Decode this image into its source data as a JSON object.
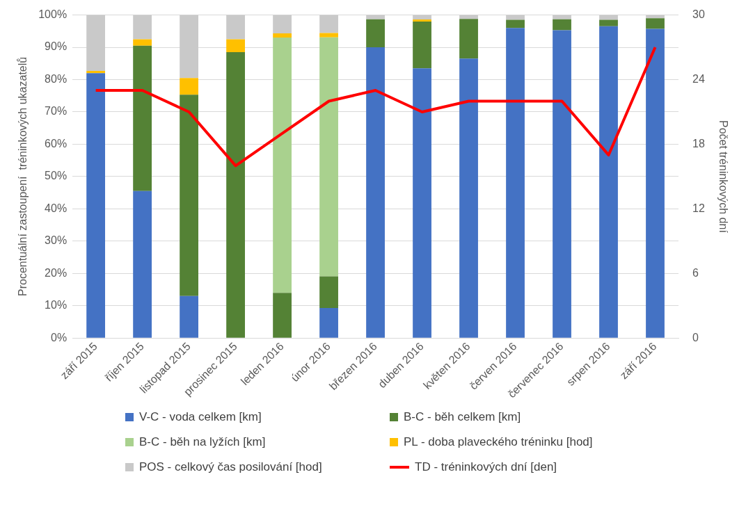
{
  "chart_data": {
    "type": "bar",
    "stacked": true,
    "ylabel": "Procentuální zastoupení  tréninkových ukazatelů",
    "y2label": "Počet tréninkových dní",
    "categories": [
      "září 2015",
      "říjen 2015",
      "listopad 2015",
      "prosinec 2015",
      "leden 2016",
      "únor 2016",
      "březen 2016",
      "duben 2016",
      "květen 2016",
      "červen 2016",
      "červenec 2016",
      "srpen 2016",
      "září 2016"
    ],
    "series": [
      {
        "name": "V-C - voda celkem [km]",
        "color": "#4472c4",
        "values": [
          82,
          45.5,
          13,
          0,
          0,
          9.3,
          90,
          83.5,
          86.5,
          96,
          95.3,
          96.5,
          95.7
        ]
      },
      {
        "name": "B-C - běh celkem [km]",
        "color": "#548235",
        "values": [
          0,
          45,
          62.3,
          88.5,
          14,
          9.8,
          8.7,
          14.5,
          12.3,
          2.5,
          3.4,
          2,
          3.3
        ]
      },
      {
        "name": "B-C - běh na lyžích [km]",
        "color": "#a9d18e",
        "values": [
          0,
          0,
          0,
          0,
          79,
          74,
          0,
          0,
          0,
          0,
          0,
          0,
          0
        ]
      },
      {
        "name": "PL - doba plaveckého tréninku [hod]",
        "color": "#ffc000",
        "values": [
          0.7,
          2,
          5.2,
          4,
          1.3,
          1.3,
          0,
          0.6,
          0,
          0,
          0,
          0,
          0
        ]
      },
      {
        "name": "POS - celkový čas posilování [hod]",
        "color": "#c9c9c9",
        "values": [
          17.3,
          7.5,
          19.5,
          7.5,
          5.7,
          5.6,
          1.3,
          1.4,
          1.2,
          1.5,
          1.3,
          1.5,
          1
        ]
      },
      {
        "name": "TD - tréninkových dní [den]",
        "type": "line",
        "axis": "y2",
        "color": "#ff0000",
        "values": [
          23,
          23,
          21,
          16,
          19,
          22,
          23,
          21,
          22,
          22,
          22,
          17,
          27
        ]
      }
    ],
    "ylim": [
      0,
      100
    ],
    "yticks": [
      {
        "value": 0,
        "label": "0%"
      },
      {
        "value": 10,
        "label": "10%"
      },
      {
        "value": 20,
        "label": "20%"
      },
      {
        "value": 30,
        "label": "30%"
      },
      {
        "value": 40,
        "label": "40%"
      },
      {
        "value": 50,
        "label": "50%"
      },
      {
        "value": 60,
        "label": "60%"
      },
      {
        "value": 70,
        "label": "70%"
      },
      {
        "value": 80,
        "label": "80%"
      },
      {
        "value": 90,
        "label": "90%"
      },
      {
        "value": 100,
        "label": "100%"
      }
    ],
    "y2lim": [
      0,
      30
    ],
    "y2ticks": [
      0,
      6,
      12,
      18,
      24,
      30
    ],
    "grid": "y",
    "legend": "bottom",
    "marker": "none"
  }
}
